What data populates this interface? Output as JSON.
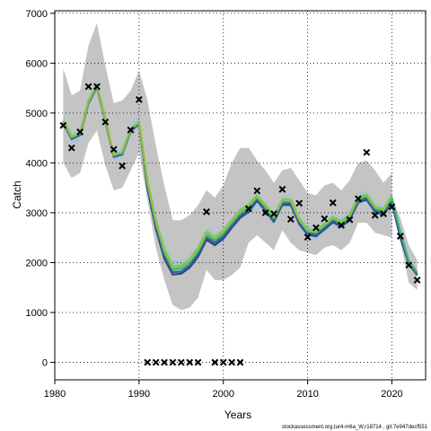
{
  "chart_data": {
    "type": "line",
    "title": "",
    "xlabel": "Years",
    "ylabel": "Catch",
    "xlim": [
      1980,
      2024
    ],
    "ylim": [
      -350,
      7050
    ],
    "xticks": [
      1980,
      1990,
      2000,
      2010,
      2020
    ],
    "yticks": [
      0,
      1000,
      2000,
      3000,
      4000,
      5000,
      6000,
      7000
    ],
    "grid": true,
    "grid_style": "dotted",
    "legend": "none",
    "years": [
      1981,
      1982,
      1983,
      1984,
      1985,
      1986,
      1987,
      1988,
      1989,
      1990,
      1991,
      1992,
      1993,
      1994,
      1995,
      1996,
      1997,
      1998,
      1999,
      2000,
      2001,
      2002,
      2003,
      2004,
      2005,
      2006,
      2007,
      2008,
      2009,
      2010,
      2011,
      2012,
      2013,
      2014,
      2015,
      2016,
      2017,
      2018,
      2019,
      2020
    ],
    "band_outer_upper": [
      5900,
      5350,
      5450,
      6350,
      6800,
      5950,
      5200,
      5250,
      5450,
      5850,
      5250,
      4350,
      3550,
      2850,
      2850,
      2950,
      3150,
      3450,
      3300,
      3550,
      4000,
      4300,
      4300,
      4050,
      3850,
      3600,
      3850,
      3900,
      3650,
      3400,
      3350,
      3550,
      3600,
      3450,
      3650,
      4000,
      4050,
      3850,
      3600,
      3800
    ],
    "band_outer_lower": [
      4000,
      3700,
      3800,
      4400,
      4650,
      3950,
      3450,
      3500,
      3850,
      4200,
      3250,
      2300,
      1650,
      1150,
      1050,
      1100,
      1300,
      1850,
      1650,
      1650,
      1750,
      1900,
      2400,
      2550,
      2400,
      2250,
      2650,
      2400,
      2250,
      2200,
      2150,
      2300,
      2350,
      2250,
      2400,
      2800,
      2800,
      2600,
      2550,
      2500
    ],
    "band_inner_upper": [
      4950,
      4600,
      4700,
      5350,
      5650,
      5000,
      4250,
      4300,
      4800,
      4950,
      3700,
      2950,
      2400,
      2050,
      2050,
      2150,
      2350,
      2700,
      2600,
      2700,
      2900,
      3100,
      3200,
      3400,
      3200,
      3000,
      3350,
      3350,
      2950,
      2750,
      2700,
      2850,
      3000,
      2900,
      3050,
      3400,
      3450,
      3200,
      3150,
      3400
    ],
    "band_inner_lower": [
      4700,
      4400,
      4450,
      5100,
      5450,
      4750,
      4050,
      4100,
      4550,
      4700,
      3400,
      2650,
      2100,
      1750,
      1750,
      1850,
      2050,
      2400,
      2300,
      2400,
      2650,
      2850,
      2950,
      3150,
      2950,
      2750,
      3100,
      3100,
      2700,
      2500,
      2450,
      2600,
      2750,
      2650,
      2800,
      3150,
      3200,
      2950,
      2900,
      3150
    ],
    "series": [
      {
        "color": "#443a83",
        "values": [
          4800,
          4480,
          4560,
          5200,
          5520,
          4840,
          4120,
          4170,
          4640,
          4780,
          3480,
          2680,
          2080,
          1760,
          1780,
          1900,
          2120,
          2460,
          2350,
          2480,
          2700,
          2900,
          3020,
          3240,
          3040,
          2820,
          3160,
          3160,
          2780,
          2560,
          2530,
          2670,
          2810,
          2720,
          2860,
          3210,
          3260,
          3020,
          2960,
          3200
        ]
      },
      {
        "color": "#31688e",
        "values": [
          4815,
          4495,
          4575,
          5215,
          5535,
          4855,
          4135,
          4185,
          4655,
          4795,
          3530,
          2740,
          2150,
          1810,
          1820,
          1950,
          2170,
          2510,
          2400,
          2530,
          2740,
          2940,
          3060,
          3270,
          3070,
          2850,
          3190,
          3190,
          2810,
          2590,
          2560,
          2700,
          2840,
          2750,
          2890,
          3240,
          3290,
          3050,
          2990,
          3240
        ]
      },
      {
        "color": "#35b779",
        "values": [
          4830,
          4510,
          4590,
          5230,
          5550,
          4870,
          4150,
          4200,
          4670,
          4810,
          3590,
          2800,
          2210,
          1870,
          1880,
          2010,
          2230,
          2570,
          2450,
          2590,
          2800,
          3000,
          3120,
          3310,
          3110,
          2890,
          3230,
          3230,
          2850,
          2630,
          2600,
          2740,
          2880,
          2790,
          2930,
          3280,
          3330,
          3090,
          3040,
          3300
        ]
      },
      {
        "color": "#7ad151",
        "values": [
          4840,
          4520,
          4600,
          5240,
          5560,
          4880,
          4160,
          4210,
          4680,
          4820,
          3620,
          2830,
          2250,
          1900,
          1920,
          2040,
          2270,
          2600,
          2490,
          2620,
          2830,
          3030,
          3150,
          3330,
          3140,
          2920,
          3250,
          3250,
          2870,
          2650,
          2620,
          2760,
          2900,
          2810,
          2950,
          3300,
          3350,
          3110,
          3060,
          3330
        ]
      },
      {
        "color": "#90c040",
        "values": [
          4845,
          4525,
          4605,
          5245,
          5565,
          4885,
          4165,
          4215,
          4685,
          4825,
          3640,
          2850,
          2270,
          1920,
          1940,
          2060,
          2290,
          2620,
          2510,
          2640,
          2850,
          3050,
          3170,
          3345,
          3155,
          2935,
          3265,
          3265,
          2885,
          2665,
          2635,
          2775,
          2915,
          2825,
          2965,
          3315,
          3365,
          3125,
          3075,
          3350
        ]
      }
    ],
    "projection_years": [
      2020,
      2021,
      2022,
      2023
    ],
    "projection_band_upper": [
      3300,
      2900,
      2350,
      2050
    ],
    "projection_band_lower": [
      3100,
      2450,
      1600,
      1450
    ],
    "projection_series": [
      {
        "color": "#443a83",
        "values": [
          3200,
          2500,
          1980,
          1750
        ]
      },
      {
        "color": "#31688e",
        "values": [
          3240,
          2560,
          2000,
          1770
        ]
      },
      {
        "color": "#35b779",
        "values": [
          3300,
          2620,
          2040,
          1800
        ]
      }
    ],
    "observed": [
      [
        1981,
        4750
      ],
      [
        1982,
        4300
      ],
      [
        1983,
        4620
      ],
      [
        1984,
        5530
      ],
      [
        1985,
        5530
      ],
      [
        1986,
        4820
      ],
      [
        1987,
        4270
      ],
      [
        1988,
        3940
      ],
      [
        1989,
        4660
      ],
      [
        1990,
        5270
      ],
      [
        1991,
        0
      ],
      [
        1992,
        0
      ],
      [
        1993,
        0
      ],
      [
        1994,
        0
      ],
      [
        1995,
        0
      ],
      [
        1996,
        0
      ],
      [
        1997,
        0
      ],
      [
        1998,
        3020
      ],
      [
        1999,
        0
      ],
      [
        2000,
        0
      ],
      [
        2001,
        0
      ],
      [
        2002,
        0
      ],
      [
        2003,
        3080
      ],
      [
        2004,
        3440
      ],
      [
        2005,
        3000
      ],
      [
        2006,
        2980
      ],
      [
        2007,
        3470
      ],
      [
        2008,
        2870
      ],
      [
        2009,
        3190
      ],
      [
        2010,
        2510
      ],
      [
        2011,
        2700
      ],
      [
        2012,
        2880
      ],
      [
        2013,
        3200
      ],
      [
        2014,
        2750
      ],
      [
        2015,
        2860
      ],
      [
        2016,
        3280
      ],
      [
        2017,
        4210
      ],
      [
        2018,
        2950
      ],
      [
        2019,
        2980
      ],
      [
        2020,
        3120
      ],
      [
        2021,
        2530
      ],
      [
        2022,
        1950
      ],
      [
        2023,
        1650
      ]
    ],
    "colors": {
      "band_outer": "#c4c4c4",
      "band_inner": "#9ec8d8",
      "observed_marker": "#000000"
    }
  },
  "footer_text": "stockassessment.org,tur4-m6a_W,r18714 , git:7e947decf551"
}
